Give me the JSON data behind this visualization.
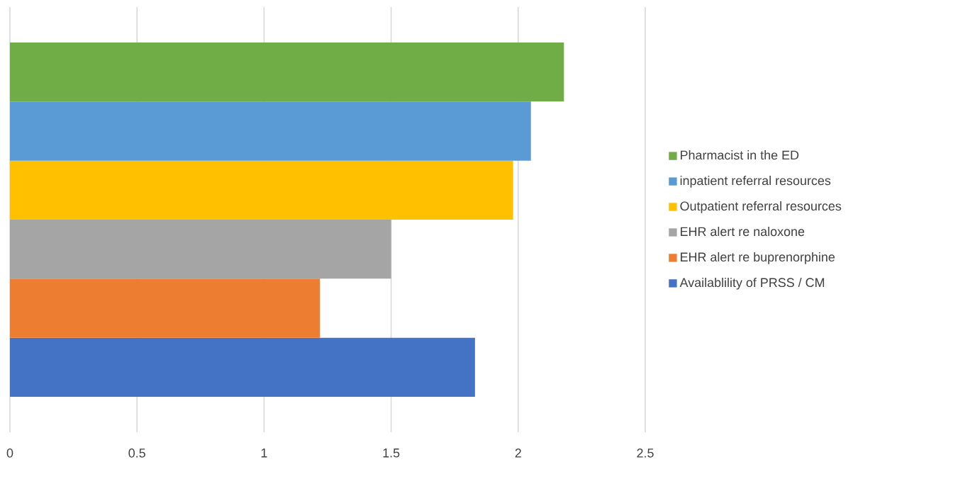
{
  "chart_data": {
    "type": "bar",
    "orientation": "horizontal",
    "categories": [
      null
    ],
    "series": [
      {
        "name": "Availablility of PRSS / CM",
        "color": "#4472c4",
        "values": [
          1.83
        ]
      },
      {
        "name": "EHR alert re buprenorphine",
        "color": "#ed7d31",
        "values": [
          1.22
        ]
      },
      {
        "name": "EHR alert re naloxone",
        "color": "#a5a5a5",
        "values": [
          1.5
        ]
      },
      {
        "name": "Outpatient referral resources",
        "color": "#ffc000",
        "values": [
          1.98
        ]
      },
      {
        "name": "inpatient referral resources",
        "color": "#5b9bd5",
        "values": [
          2.05
        ]
      },
      {
        "name": "Pharmacist in the ED",
        "color": "#70ad47",
        "values": [
          2.18
        ]
      }
    ],
    "xlim": [
      0,
      2.5
    ],
    "xticks": [
      0,
      0.5,
      1,
      1.5,
      2,
      2.5
    ],
    "grid": "x",
    "legend": "right"
  }
}
